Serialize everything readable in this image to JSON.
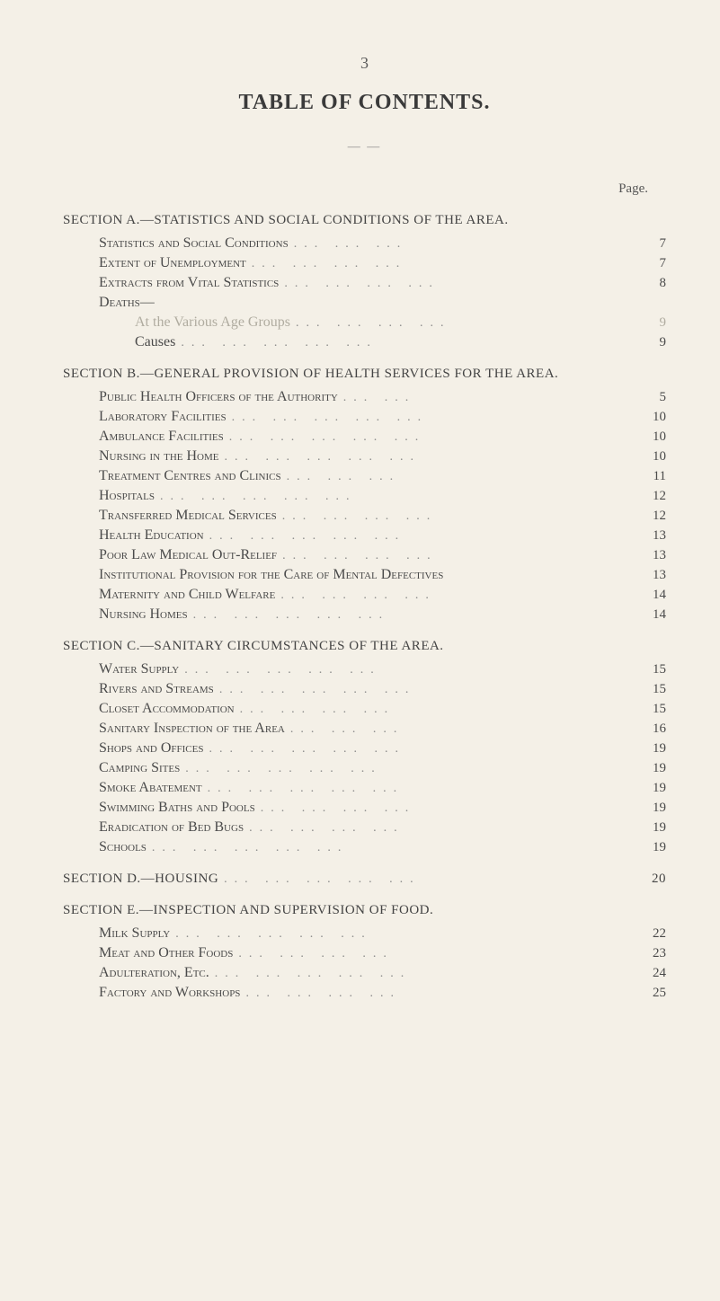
{
  "page_number_top": "3",
  "title": "TABLE OF CONTENTS.",
  "separator": "— —",
  "page_col_label": "Page.",
  "sections": {
    "A": {
      "heading": "SECTION A.—STATISTICS AND SOCIAL CONDITIONS OF THE AREA.",
      "heading_page": "",
      "entries": [
        {
          "label": "Statistics and Social Conditions",
          "page": "7"
        },
        {
          "label": "Extent of Unemployment",
          "page": "7"
        },
        {
          "label": "Extracts from Vital Statistics",
          "page": "8"
        }
      ],
      "deaths_label": "Deaths—",
      "deaths_entries": [
        {
          "label": "At the Various Age Groups",
          "page": "9",
          "faint": true
        },
        {
          "label": "Causes",
          "page": "9"
        }
      ]
    },
    "B": {
      "heading": "SECTION B.—GENERAL PROVISION OF HEALTH SERVICES FOR THE AREA.",
      "entries": [
        {
          "label": "Public Health Officers of the Authority",
          "page": "5"
        },
        {
          "label": "Laboratory Facilities",
          "page": "10"
        },
        {
          "label": "Ambulance Facilities",
          "page": "10"
        },
        {
          "label": "Nursing in the Home",
          "page": "10"
        },
        {
          "label": "Treatment Centres and Clinics",
          "page": "11"
        },
        {
          "label": "Hospitals",
          "page": "12"
        },
        {
          "label": "Transferred Medical Services",
          "page": "12"
        },
        {
          "label": "Health Education",
          "page": "13"
        },
        {
          "label": "Poor Law Medical Out-Relief",
          "page": "13"
        },
        {
          "label": "Institutional Provision for the Care of Mental Defectives",
          "page": "13"
        },
        {
          "label": "Maternity and Child Welfare",
          "page": "14"
        },
        {
          "label": "Nursing Homes",
          "page": "14"
        }
      ]
    },
    "C": {
      "heading": "SECTION C.—SANITARY CIRCUMSTANCES OF THE AREA.",
      "entries": [
        {
          "label": "Water Supply",
          "page": "15"
        },
        {
          "label": "Rivers and Streams",
          "page": "15"
        },
        {
          "label": "Closet Accommodation",
          "page": "15"
        },
        {
          "label": "Sanitary Inspection of the Area",
          "page": "16"
        },
        {
          "label": "Shops and Offices",
          "page": "19"
        },
        {
          "label": "Camping Sites",
          "page": "19"
        },
        {
          "label": "Smoke Abatement",
          "page": "19"
        },
        {
          "label": "Swimming Baths and Pools",
          "page": "19"
        },
        {
          "label": "Eradication of Bed Bugs",
          "page": "19"
        },
        {
          "label": "Schools",
          "page": "19"
        }
      ]
    },
    "D": {
      "heading": "SECTION D.—HOUSING",
      "heading_page": "20"
    },
    "E": {
      "heading": "SECTION E.—INSPECTION AND SUPERVISION OF FOOD.",
      "entries": [
        {
          "label": "Milk Supply",
          "page": "22"
        },
        {
          "label": "Meat and Other Foods",
          "page": "23"
        },
        {
          "label": "Adulteration, Etc.",
          "page": "24"
        },
        {
          "label": "Factory and Workshops",
          "page": "25"
        }
      ]
    }
  },
  "colors": {
    "background": "#f4f0e7",
    "text": "#4a4a4a",
    "faint": "#b0aca0",
    "dots": "#888888"
  },
  "typography": {
    "title_fontsize": 24,
    "heading_fontsize": 15,
    "entry_fontsize": 16,
    "font_family": "Georgia"
  }
}
